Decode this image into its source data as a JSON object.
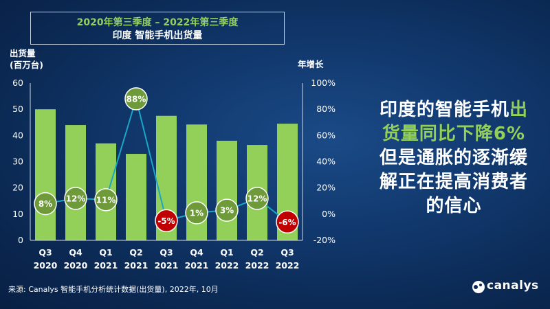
{
  "title": {
    "line1": "2020年第三季度 – 2022年第三季度",
    "line2": "印度 智能手机出货量"
  },
  "y1_label": {
    "line1": "出货量",
    "line2": "(百万台)"
  },
  "y2_label": "年增长",
  "headline": {
    "part1": "印度的智能手机",
    "part2": "出",
    "part3": "货量同比下降6%",
    "part4": "但是通胀的逐渐缓",
    "part5": "解正在提高消费者",
    "part6": "的信心"
  },
  "source": "来源: Canalys 智能手机分析统计数据(出货量), 2022年, 10月",
  "logo_text": "canalys",
  "colors": {
    "bar": "#93d05a",
    "positive_marker": "#6e9a3a",
    "negative_marker": "#c00000",
    "line": "#1aa6c6"
  },
  "chart_data": {
    "type": "bar",
    "categories": [
      [
        "Q3",
        "2020"
      ],
      [
        "Q4",
        "2020"
      ],
      [
        "Q1",
        "2021"
      ],
      [
        "Q2",
        "2021"
      ],
      [
        "Q3",
        "2021"
      ],
      [
        "Q4",
        "2021"
      ],
      [
        "Q1",
        "2022"
      ],
      [
        "Q2",
        "2022"
      ],
      [
        "Q3",
        "2022"
      ]
    ],
    "series": [
      {
        "name": "出货量",
        "axis": "left",
        "type": "bar",
        "values": [
          50,
          44,
          37,
          33,
          47.5,
          44.2,
          38,
          36.4,
          44.5
        ]
      },
      {
        "name": "年增长",
        "axis": "right",
        "type": "line",
        "values": [
          8,
          12,
          11,
          88,
          -5,
          1,
          3,
          12,
          -6
        ],
        "labels": [
          "8%",
          "12%",
          "11%",
          "88%",
          "-5%",
          "1%",
          "3%",
          "12%",
          "-6%"
        ]
      }
    ],
    "ylim": [
      0,
      60
    ],
    "y_ticks": [
      "0",
      "10",
      "20",
      "30",
      "40",
      "50",
      "60"
    ],
    "y2lim": [
      -20,
      100
    ],
    "y2_ticks": [
      "-20%",
      "0%",
      "20%",
      "40%",
      "60%",
      "80%",
      "100%"
    ]
  }
}
